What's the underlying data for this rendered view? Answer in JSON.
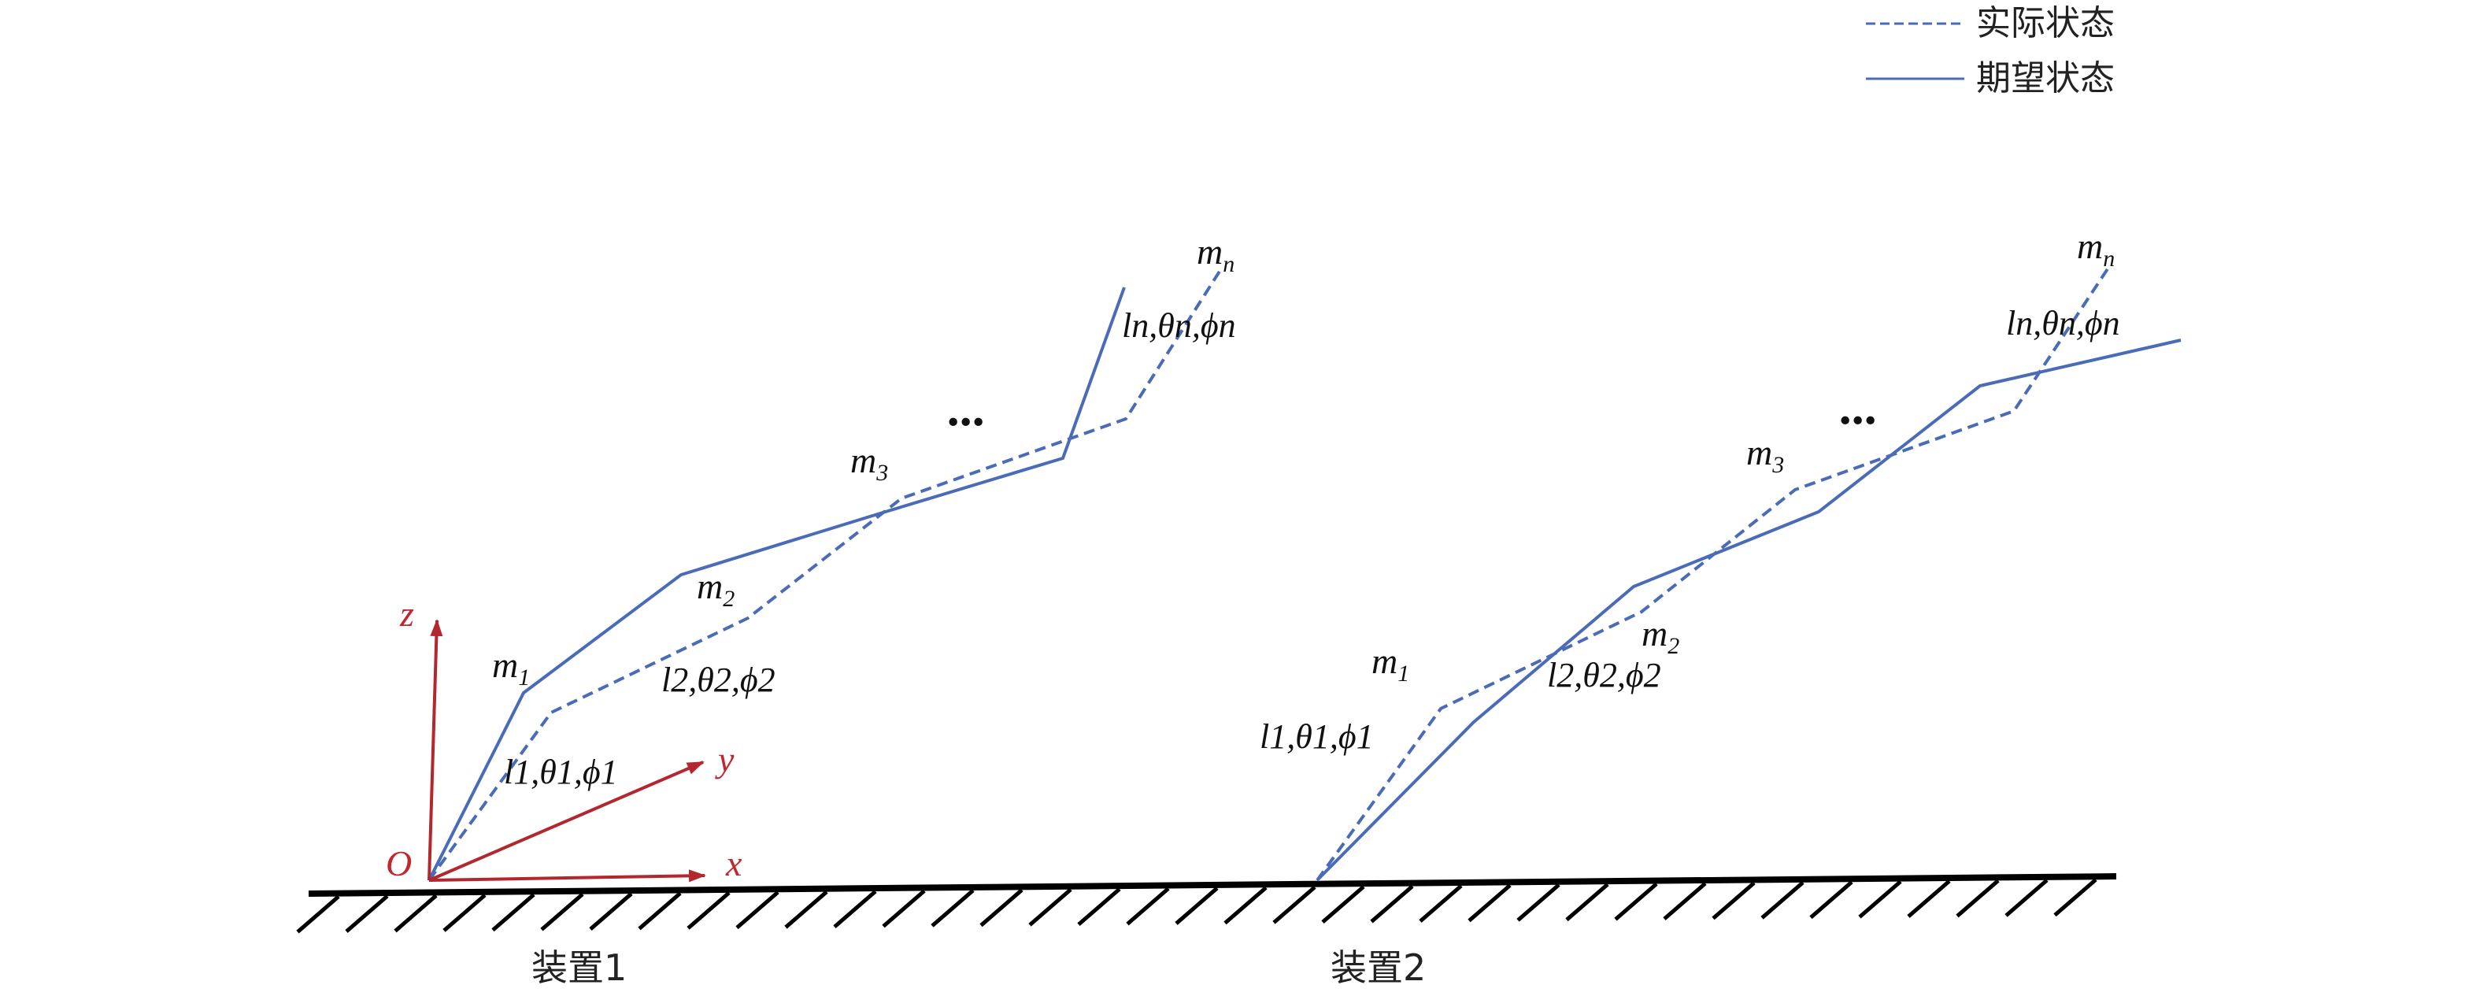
{
  "legend": {
    "dashed_label": "实际状态",
    "solid_label": "期望状态"
  },
  "devices": [
    {
      "caption": "装置1",
      "labels": {
        "m1": {
          "base": "m",
          "sub": "1"
        },
        "m2": {
          "base": "m",
          "sub": "2"
        },
        "m3": {
          "base": "m",
          "sub": "3"
        },
        "mn": {
          "base": "m",
          "sub": "n"
        },
        "seg1": "l1,θ1,ϕ1",
        "seg2": "l2,θ2,ϕ2",
        "segn": "ln,θn,ϕn",
        "ellipsis": "..."
      }
    },
    {
      "caption": "装置2",
      "labels": {
        "m1": {
          "base": "m",
          "sub": "1"
        },
        "m2": {
          "base": "m",
          "sub": "2"
        },
        "m3": {
          "base": "m",
          "sub": "3"
        },
        "mn": {
          "base": "m",
          "sub": "n"
        },
        "seg1": "l1,θ1,ϕ1",
        "seg2": "l2,θ2,ϕ2",
        "segn": "ln,θn,ϕn",
        "ellipsis": "..."
      }
    }
  ],
  "axes": {
    "origin": "O",
    "x": "x",
    "y": "y",
    "z": "z"
  },
  "colors": {
    "chain": "#4a6cb8",
    "axes": "#b2282e",
    "ground": "#000000"
  }
}
